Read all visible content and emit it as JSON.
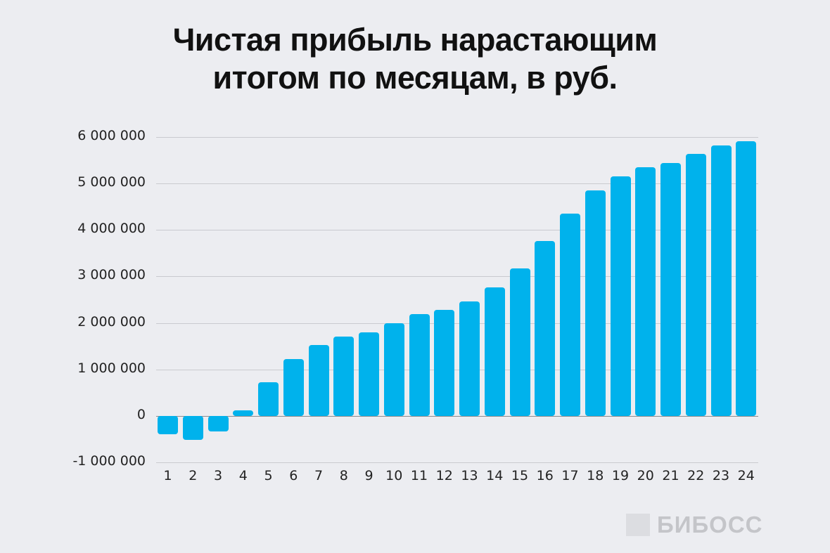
{
  "title_line1": "Чистая прибыль нарастающим",
  "title_line2": "итогом по месяцам, в руб.",
  "logo": {
    "text": "БИБОСС",
    "icon": "logo-square-icon"
  },
  "colors": {
    "bar": "#00b2ec",
    "background": "#ecedf1",
    "grid": "#c9cacf"
  },
  "chart_data": {
    "type": "bar",
    "title": "Чистая прибыль нарастающим итогом по месяцам, в руб.",
    "xlabel": "",
    "ylabel": "",
    "categories": [
      "1",
      "2",
      "3",
      "4",
      "5",
      "6",
      "7",
      "8",
      "9",
      "10",
      "11",
      "12",
      "13",
      "14",
      "15",
      "16",
      "17",
      "18",
      "19",
      "20",
      "21",
      "22",
      "23",
      "24"
    ],
    "values": [
      -390000,
      -510000,
      -330000,
      120000,
      730000,
      1220000,
      1520000,
      1710000,
      1800000,
      2000000,
      2190000,
      2280000,
      2460000,
      2760000,
      3170000,
      3760000,
      4350000,
      4850000,
      5150000,
      5350000,
      5440000,
      5640000,
      5820000,
      5910000
    ],
    "ylim": [
      -1000000,
      6000000
    ],
    "yticks": [
      6000000,
      5000000,
      4000000,
      3000000,
      2000000,
      1000000,
      0,
      -1000000
    ],
    "ytick_labels": [
      "6 000 000",
      "5 000 000",
      "4 000 000",
      "3 000 000",
      "2 000 000",
      "1 000 000",
      "0",
      "-1 000 000"
    ],
    "grid": true,
    "legend": null
  }
}
